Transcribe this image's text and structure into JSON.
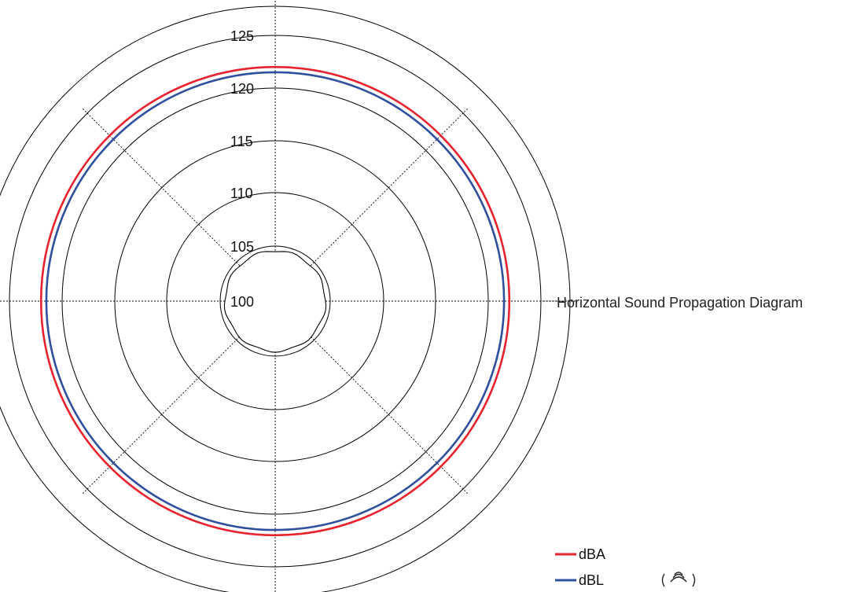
{
  "chart_data": {
    "type": "polar-line",
    "title": "",
    "axis_caption": "Horizontal Sound Propagation Diagram",
    "radial_ticks": [
      "100",
      "105",
      "110",
      "115",
      "120",
      "125"
    ],
    "radial_range": [
      100,
      125
    ],
    "inner_boundary_db": 103.5,
    "grid": true,
    "legend_position": "bottom-right",
    "series": [
      {
        "name": "dBA",
        "color": "#e8232e",
        "value_db": 122.0
      },
      {
        "name": "dBL",
        "color": "#2f4f9f",
        "value_db": 121.5
      }
    ]
  }
}
